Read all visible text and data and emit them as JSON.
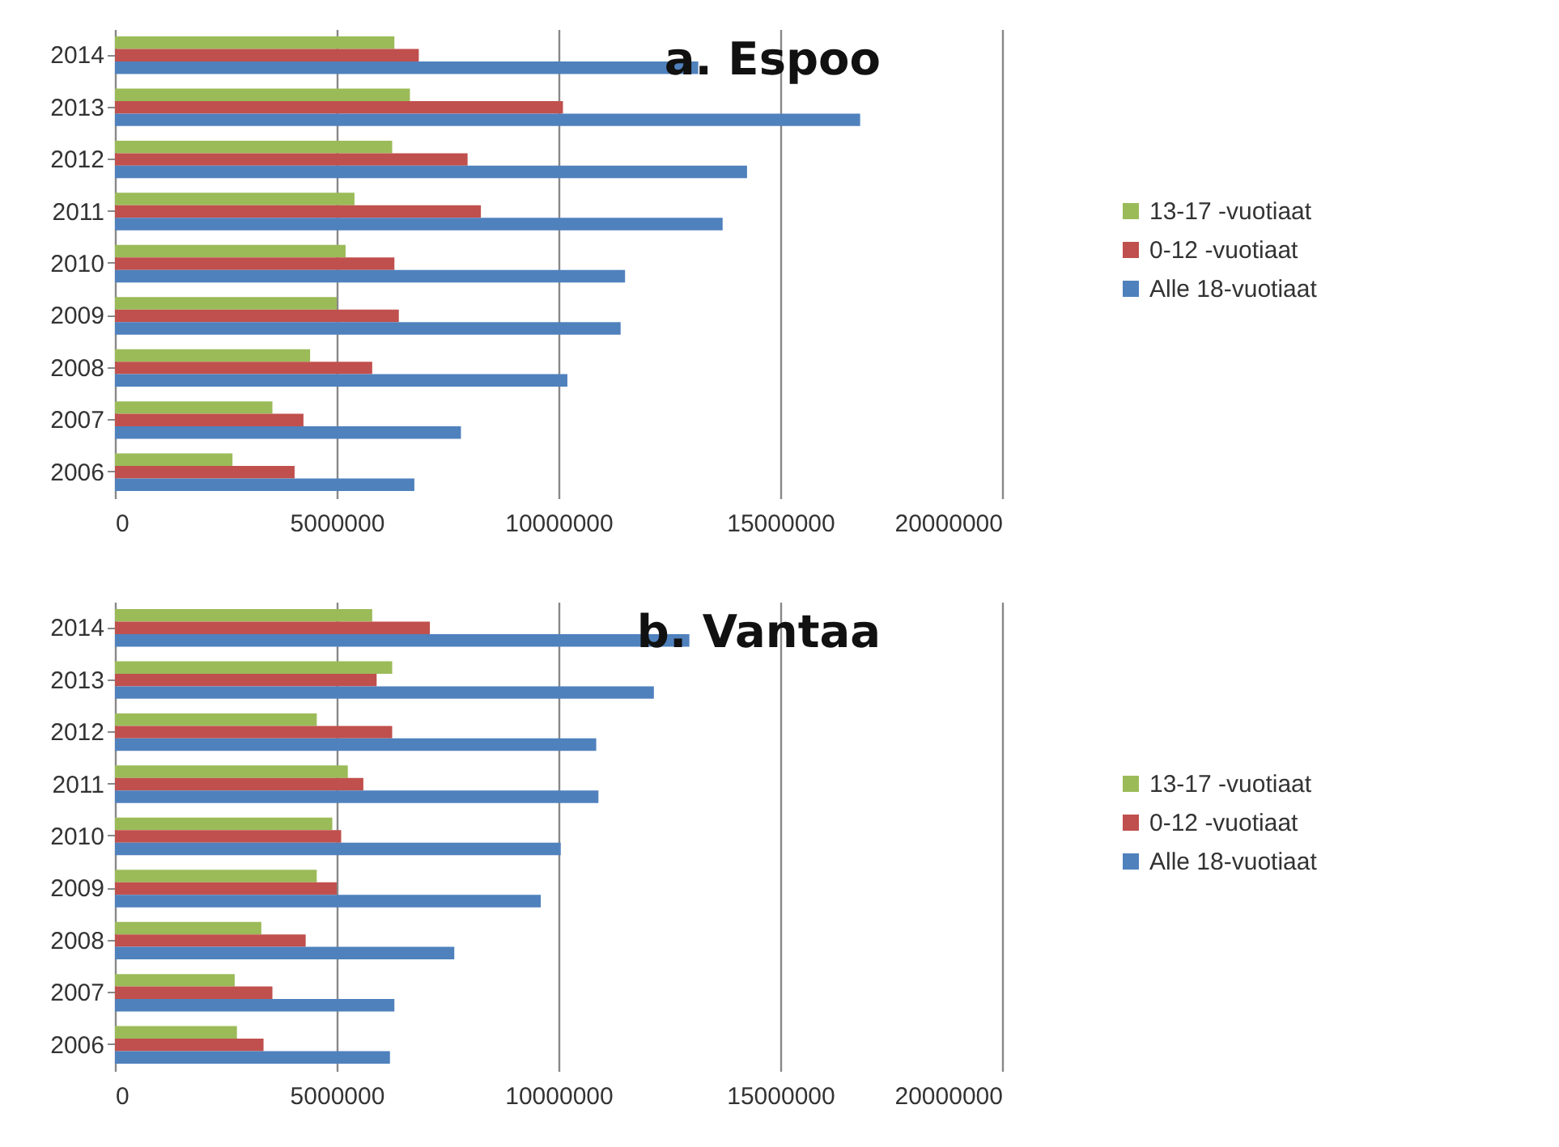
{
  "chart_data": [
    {
      "type": "bar",
      "orientation": "horizontal",
      "title": "a. Espoo",
      "categories": [
        "2014",
        "2013",
        "2012",
        "2011",
        "2010",
        "2009",
        "2008",
        "2007",
        "2006"
      ],
      "series": [
        {
          "name": "13-17 -vuotiaat",
          "color": "#9bbb59",
          "values": [
            6300000,
            6650000,
            6250000,
            5400000,
            5200000,
            5000000,
            4400000,
            3550000,
            2650000
          ]
        },
        {
          "name": "0-12 -vuotiaat",
          "color": "#c0504d",
          "values": [
            6850000,
            10100000,
            7950000,
            8250000,
            6300000,
            6400000,
            5800000,
            4250000,
            4050000
          ]
        },
        {
          "name": "Alle 18-vuotiaat",
          "color": "#4f81bd",
          "values": [
            13150000,
            16800000,
            14250000,
            13700000,
            11500000,
            11400000,
            10200000,
            7800000,
            6750000
          ]
        }
      ],
      "xlim": [
        0,
        20000000
      ],
      "xticks": [
        0,
        5000000,
        10000000,
        15000000,
        20000000
      ],
      "grid": "x",
      "legend": "right"
    },
    {
      "type": "bar",
      "orientation": "horizontal",
      "title": "b. Vantaa",
      "categories": [
        "2014",
        "2013",
        "2012",
        "2011",
        "2010",
        "2009",
        "2008",
        "2007",
        "2006"
      ],
      "series": [
        {
          "name": "13-17 -vuotiaat",
          "color": "#9bbb59",
          "values": [
            5800000,
            6250000,
            4550000,
            5250000,
            4900000,
            4550000,
            3300000,
            2700000,
            2750000
          ]
        },
        {
          "name": "0-12 -vuotiaat",
          "color": "#c0504d",
          "values": [
            7100000,
            5900000,
            6250000,
            5600000,
            5100000,
            5000000,
            4300000,
            3550000,
            3350000
          ]
        },
        {
          "name": "Alle 18-vuotiaat",
          "color": "#4f81bd",
          "values": [
            12950000,
            12150000,
            10850000,
            10900000,
            10050000,
            9600000,
            7650000,
            6300000,
            6200000
          ]
        }
      ],
      "xlim": [
        0,
        20000000
      ],
      "xticks": [
        0,
        5000000,
        10000000,
        15000000,
        20000000
      ],
      "grid": "x",
      "legend": "right"
    }
  ]
}
